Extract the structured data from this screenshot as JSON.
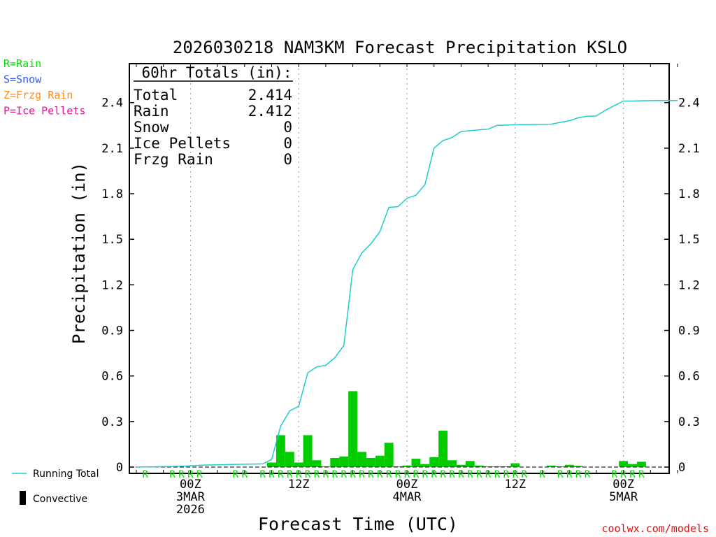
{
  "chart_data": {
    "type": "bar",
    "title": "2026030218 NAM3KM Forecast Precipitation KSLO",
    "xlabel": "Forecast Time (UTC)",
    "ylabel": "Precipitation (in)",
    "ylim": [
      0,
      2.6
    ],
    "xlim": [
      0,
      60
    ],
    "y_ticks": [
      0,
      0.3,
      0.6,
      0.9,
      1.2,
      1.5,
      1.8,
      2.1,
      2.4
    ],
    "y_tick_labels": [
      "0",
      "0.3",
      "0.6",
      "0.9",
      "1.2",
      "1.5",
      "1.8",
      "2.1",
      "2.4"
    ],
    "x_ticks": [
      {
        "hour": 6,
        "lines": [
          "00Z",
          "3MAR",
          "2026"
        ]
      },
      {
        "hour": 18,
        "lines": [
          "12Z"
        ]
      },
      {
        "hour": 30,
        "lines": [
          "00Z",
          "4MAR"
        ]
      },
      {
        "hour": 42,
        "lines": [
          "12Z"
        ]
      },
      {
        "hour": 54,
        "lines": [
          "00Z",
          "5MAR"
        ]
      }
    ],
    "legend_types": [
      {
        "label": "R=Rain",
        "color": "#00dd00"
      },
      {
        "label": "S=Snow",
        "color": "#3355ff"
      },
      {
        "label": "Z=Frzg Rain",
        "color": "#ff8c1a"
      },
      {
        "label": "P=Ice Pellets",
        "color": "#ee1199"
      }
    ],
    "legend_series": [
      {
        "label": "Running Total",
        "color": "#22cccc"
      },
      {
        "label": "Convective",
        "color": "#000000"
      }
    ],
    "totals": {
      "header": "60hr Totals (in):",
      "rows": [
        {
          "label": "Total",
          "value": "2.414"
        },
        {
          "label": "Rain",
          "value": "2.412"
        },
        {
          "label": "Snow",
          "value": "0"
        },
        {
          "label": "Ice Pellets",
          "value": "0"
        },
        {
          "label": "Frzg Rain",
          "value": "0"
        }
      ]
    },
    "series": [
      {
        "name": "Hourly Precipitation",
        "color": "#00cc00",
        "hours": [
          15,
          16,
          17,
          18,
          19,
          20,
          21,
          22,
          23,
          24,
          25,
          26,
          27,
          28,
          29,
          30,
          31,
          32,
          33,
          34,
          35,
          36,
          37,
          38,
          39,
          40,
          41,
          42,
          46,
          47,
          48,
          49,
          54,
          55,
          56
        ],
        "values": [
          0.03,
          0.21,
          0.1,
          0.03,
          0.21,
          0.045,
          0.005,
          0.06,
          0.07,
          0.5,
          0.1,
          0.06,
          0.075,
          0.16,
          0.005,
          0.01,
          0.055,
          0.02,
          0.065,
          0.24,
          0.045,
          0.015,
          0.04,
          0.01,
          0.005,
          0.005,
          0.005,
          0.025,
          0.01,
          0.005,
          0.015,
          0.008,
          0.04,
          0.02,
          0.035
        ]
      },
      {
        "name": "Running Total",
        "color": "#22cccc",
        "x": [
          0,
          1,
          2,
          3,
          4,
          5,
          6,
          7,
          8,
          9,
          10,
          11,
          12,
          13,
          14,
          15,
          16,
          17,
          18,
          19,
          20,
          21,
          22,
          23,
          24,
          25,
          26,
          27,
          28,
          29,
          30,
          31,
          32,
          33,
          34,
          35,
          36,
          37,
          38,
          39,
          40,
          41,
          42,
          43,
          44,
          45,
          46,
          47,
          48,
          49,
          50,
          51,
          52,
          53,
          54,
          55,
          56,
          57,
          58,
          59,
          60
        ],
        "y": [
          0.0,
          0.001,
          0.002,
          0.003,
          0.004,
          0.006,
          0.008,
          0.012,
          0.014,
          0.015,
          0.016,
          0.018,
          0.019,
          0.02,
          0.021,
          0.05,
          0.27,
          0.37,
          0.4,
          0.62,
          0.66,
          0.67,
          0.72,
          0.8,
          1.3,
          1.41,
          1.47,
          1.55,
          1.71,
          1.715,
          1.77,
          1.79,
          1.86,
          2.1,
          2.15,
          2.17,
          2.21,
          2.215,
          2.22,
          2.225,
          2.25,
          2.252,
          2.254,
          2.255,
          2.256,
          2.257,
          2.258,
          2.27,
          2.28,
          2.3,
          2.31,
          2.312,
          2.35,
          2.38,
          2.41,
          2.41,
          2.412,
          2.413,
          2.414,
          2.414,
          2.414
        ]
      }
    ],
    "type_markers": {
      "letter": "R",
      "color": "#00dd00",
      "hours": [
        1,
        4,
        5,
        6,
        7,
        11,
        12,
        14,
        15,
        16,
        17,
        18,
        19,
        20,
        21,
        22,
        23,
        24,
        25,
        26,
        27,
        28,
        29,
        30,
        31,
        32,
        33,
        34,
        35,
        36,
        37,
        38,
        39,
        40,
        41,
        42,
        43,
        45,
        47,
        48,
        49,
        50,
        53,
        54,
        55,
        56
      ]
    },
    "credit": "coolwx.com/models"
  }
}
